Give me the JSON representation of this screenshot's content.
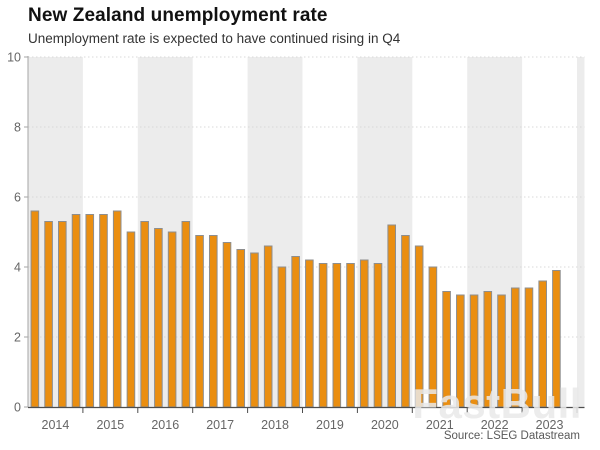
{
  "header": {
    "title": "New Zealand unemployment rate",
    "subtitle": "Unemployment rate is expected to have continued rising in Q4"
  },
  "watermark": {
    "text": "FastBull"
  },
  "footer": {
    "source": "Source: LSEG Datastream"
  },
  "chart_data": {
    "type": "bar",
    "title": "New Zealand unemployment rate",
    "subtitle": "Unemployment rate is expected to have continued rising in Q4",
    "xlabel": "",
    "ylabel": "",
    "ylim": [
      0,
      10
    ],
    "yticks": [
      0,
      2,
      4,
      6,
      8,
      10
    ],
    "grid": "dotted-horizontal",
    "legend": "none",
    "x_band_years": [
      "2014",
      "2015",
      "2016",
      "2017",
      "2018",
      "2019",
      "2020",
      "2021",
      "2022",
      "2023"
    ],
    "shaded_band_years": [
      "2014",
      "2016",
      "2018",
      "2020",
      "2022"
    ],
    "categories": [
      "2014 Q1",
      "2014 Q2",
      "2014 Q3",
      "2014 Q4",
      "2015 Q1",
      "2015 Q2",
      "2015 Q3",
      "2015 Q4",
      "2016 Q1",
      "2016 Q2",
      "2016 Q3",
      "2016 Q4",
      "2017 Q1",
      "2017 Q2",
      "2017 Q3",
      "2017 Q4",
      "2018 Q1",
      "2018 Q2",
      "2018 Q3",
      "2018 Q4",
      "2019 Q1",
      "2019 Q2",
      "2019 Q3",
      "2019 Q4",
      "2020 Q1",
      "2020 Q2",
      "2020 Q3",
      "2020 Q4",
      "2021 Q1",
      "2021 Q2",
      "2021 Q3",
      "2021 Q4",
      "2022 Q1",
      "2022 Q2",
      "2022 Q3",
      "2022 Q4",
      "2023 Q1",
      "2023 Q2",
      "2023 Q3"
    ],
    "values": [
      5.6,
      5.3,
      5.3,
      5.5,
      5.5,
      5.5,
      5.6,
      5.0,
      5.3,
      5.1,
      5.0,
      5.3,
      4.9,
      4.9,
      4.7,
      4.5,
      4.4,
      4.6,
      4.0,
      4.3,
      4.2,
      4.1,
      4.1,
      4.1,
      4.2,
      4.1,
      5.2,
      4.9,
      4.6,
      4.0,
      3.3,
      3.2,
      3.2,
      3.3,
      3.2,
      3.4,
      3.4,
      3.6,
      3.9
    ],
    "colors": {
      "bar_fill": "#EA8E10",
      "bar_border": "#8E8E8E",
      "band_shade": "#ECECEC",
      "gridline": "#D9D9D9",
      "y_axis": "#A6A6A6",
      "x_axis": "#4D4D4D",
      "tick_label": "#666666"
    }
  }
}
